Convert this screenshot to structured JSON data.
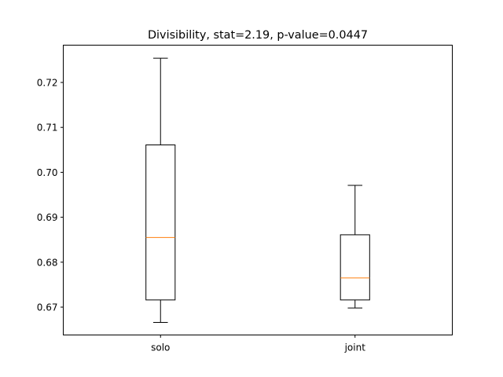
{
  "chart_data": {
    "type": "box",
    "title": "Divisibility, stat=2.19, p-value=0.0447",
    "xlabel": "",
    "ylabel": "",
    "categories": [
      "solo",
      "joint"
    ],
    "boxes": [
      {
        "name": "solo",
        "whisker_low": 0.6666,
        "q1": 0.6716,
        "median": 0.6855,
        "q3": 0.7061,
        "whisker_high": 0.7254
      },
      {
        "name": "joint",
        "whisker_low": 0.6698,
        "q1": 0.6716,
        "median": 0.6765,
        "q3": 0.6861,
        "whisker_high": 0.6971
      }
    ],
    "ylim": [
      0.6638,
      0.7283
    ],
    "yticks": [
      "0.67",
      "0.68",
      "0.69",
      "0.70",
      "0.71",
      "0.72"
    ],
    "grid": false,
    "colors": {
      "box": "#000000",
      "median": "#ff7f0e",
      "background": "#ffffff"
    }
  }
}
